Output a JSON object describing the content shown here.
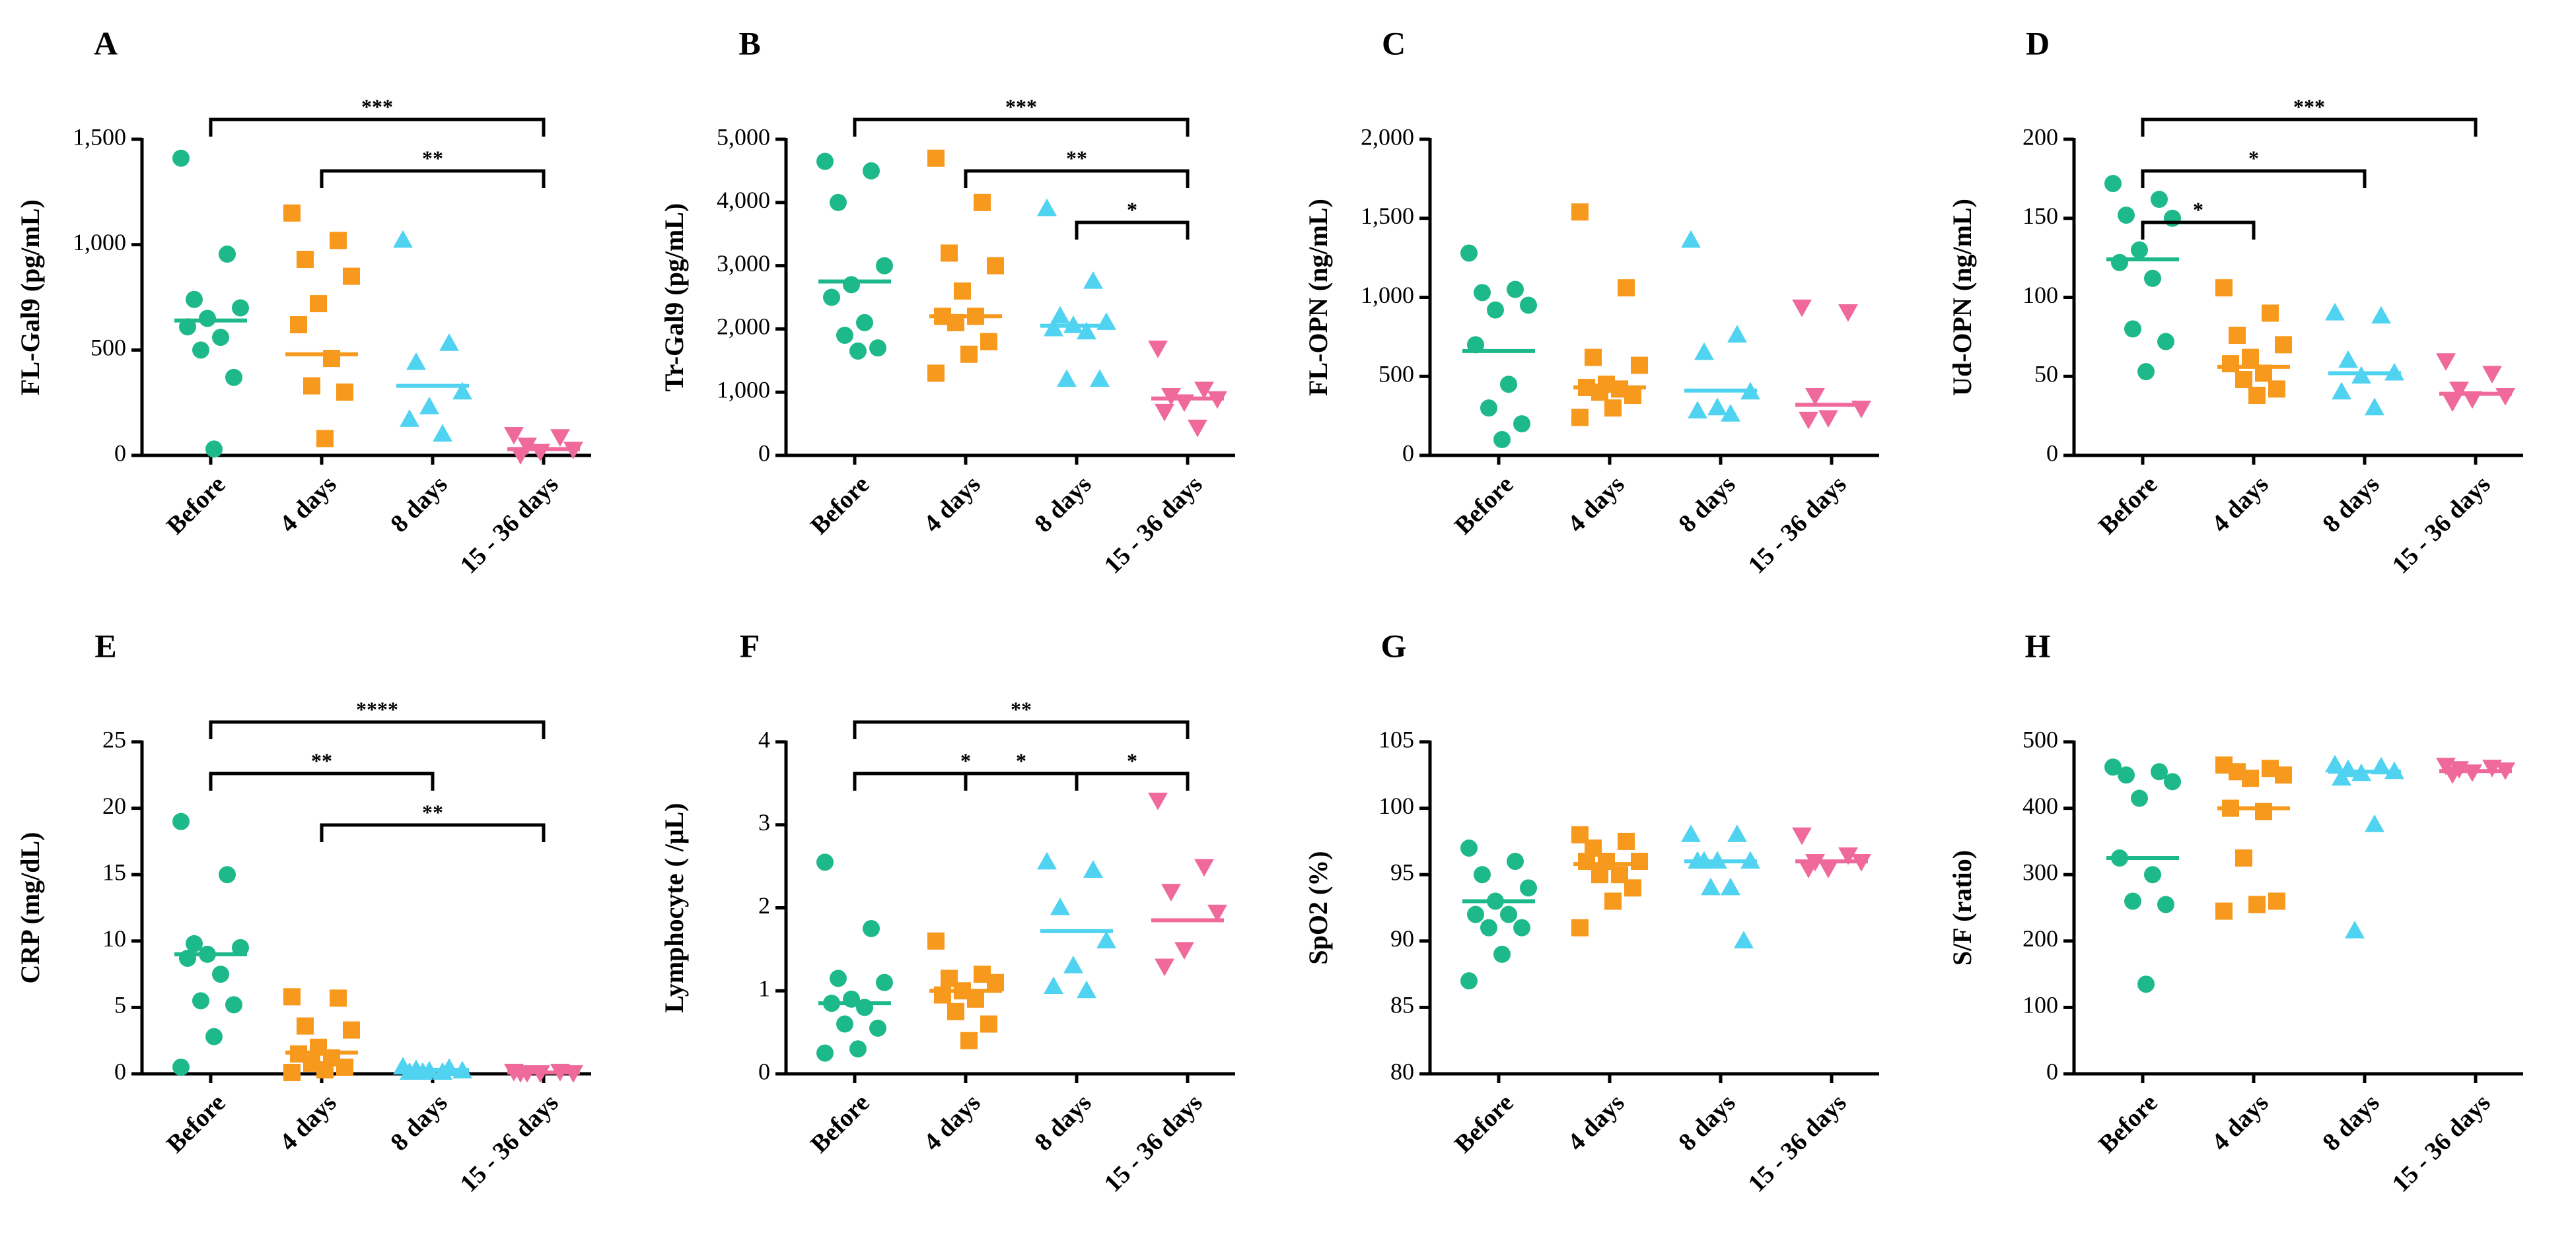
{
  "chart_data": [
    {
      "type": "dotplot",
      "title": "A",
      "y_label": "FL-Gal9 (pg/mL)",
      "categories": [
        "Before",
        "4 days",
        "8 days",
        "15 - 36 days"
      ],
      "colors": [
        "#1db98b",
        "#f7991c",
        "#4fd3f0",
        "#f0699b"
      ],
      "markers": [
        "circle",
        "square",
        "triangle",
        "triangle-down"
      ],
      "ylim": [
        0,
        1500
      ],
      "yticks": [
        0,
        500,
        {
          "value": 1000,
          "label": "1,000"
        },
        {
          "value": 1500,
          "label": "1,500"
        }
      ],
      "points": [
        [
          1410,
          955,
          740,
          700,
          650,
          610,
          560,
          500,
          370,
          30
        ],
        [
          1150,
          1020,
          930,
          850,
          720,
          620,
          460,
          330,
          300,
          80
        ],
        [
          1020,
          530,
          440,
          300,
          230,
          170,
          100
        ],
        [
          100,
          90,
          50,
          30,
          20,
          5
        ]
      ],
      "medians": [
        640,
        480,
        330,
        30
      ],
      "comparisons": [
        {
          "groups": [
            "Before",
            "15 - 36 days"
          ],
          "label": "***"
        },
        {
          "groups": [
            "4 days",
            "15 - 36 days"
          ],
          "label": "**"
        }
      ]
    },
    {
      "type": "dotplot",
      "title": "B",
      "y_label": "Tr-Gal9 (pg/mL)",
      "categories": [
        "Before",
        "4 days",
        "8 days",
        "15 - 36 days"
      ],
      "colors": [
        "#1db98b",
        "#f7991c",
        "#4fd3f0",
        "#f0699b"
      ],
      "markers": [
        "circle",
        "square",
        "triangle",
        "triangle-down"
      ],
      "ylim": [
        0,
        5000
      ],
      "yticks": [
        0,
        {
          "value": 1000,
          "label": "1,000"
        },
        {
          "value": 2000,
          "label": "2,000"
        },
        {
          "value": 3000,
          "label": "3,000"
        },
        {
          "value": 4000,
          "label": "4,000"
        },
        {
          "value": 5000,
          "label": "5,000"
        }
      ],
      "points": [
        [
          4650,
          4500,
          4000,
          3000,
          2700,
          2500,
          2100,
          1900,
          1700,
          1650
        ],
        [
          4700,
          4000,
          3200,
          3000,
          2600,
          2200,
          2200,
          2100,
          1800,
          1600,
          1300
        ],
        [
          3900,
          2750,
          2200,
          2100,
          2050,
          2000,
          1950,
          1200,
          1200
        ],
        [
          1700,
          1050,
          950,
          900,
          850,
          700,
          450
        ]
      ],
      "medians": [
        2750,
        2200,
        2050,
        900
      ],
      "comparisons": [
        {
          "groups": [
            "Before",
            "15 - 36 days"
          ],
          "label": "***"
        },
        {
          "groups": [
            "4 days",
            "15 - 36 days"
          ],
          "label": "**"
        },
        {
          "groups": [
            "8 days",
            "15 - 36 days"
          ],
          "label": "*"
        }
      ]
    },
    {
      "type": "dotplot",
      "title": "C",
      "y_label": "FL-OPN (ng/mL)",
      "categories": [
        "Before",
        "4 days",
        "8 days",
        "15 - 36 days"
      ],
      "colors": [
        "#1db98b",
        "#f7991c",
        "#4fd3f0",
        "#f0699b"
      ],
      "markers": [
        "circle",
        "square",
        "triangle",
        "triangle-down"
      ],
      "ylim": [
        0,
        2000
      ],
      "yticks": [
        0,
        500,
        {
          "value": 1000,
          "label": "1,000"
        },
        {
          "value": 1500,
          "label": "1,500"
        },
        {
          "value": 2000,
          "label": "2,000"
        }
      ],
      "points": [
        [
          1280,
          1050,
          1030,
          950,
          920,
          700,
          450,
          300,
          200,
          100
        ],
        [
          1540,
          1060,
          620,
          570,
          450,
          430,
          420,
          400,
          380,
          300,
          240
        ],
        [
          1360,
          760,
          650,
          400,
          300,
          280,
          260
        ],
        [
          940,
          910,
          380,
          300,
          240,
          230
        ]
      ],
      "medians": [
        660,
        430,
        410,
        320
      ],
      "comparisons": []
    },
    {
      "type": "dotplot",
      "title": "D",
      "y_label": "Ud-OPN (ng/mL)",
      "categories": [
        "Before",
        "4 days",
        "8 days",
        "15 - 36 days"
      ],
      "colors": [
        "#1db98b",
        "#f7991c",
        "#4fd3f0",
        "#f0699b"
      ],
      "markers": [
        "circle",
        "square",
        "triangle",
        "triangle-down"
      ],
      "ylim": [
        0,
        200
      ],
      "yticks": [
        0,
        50,
        100,
        150,
        200
      ],
      "points": [
        [
          172,
          162,
          152,
          150,
          130,
          122,
          112,
          80,
          72,
          53
        ],
        [
          106,
          90,
          76,
          70,
          62,
          58,
          52,
          48,
          42,
          38
        ],
        [
          90,
          88,
          60,
          52,
          50,
          40,
          30
        ],
        [
          60,
          52,
          42,
          38,
          36,
          34
        ]
      ],
      "medians": [
        124,
        56,
        52,
        39
      ],
      "comparisons": [
        {
          "groups": [
            "Before",
            "15 - 36 days"
          ],
          "label": "***"
        },
        {
          "groups": [
            "Before",
            "8 days"
          ],
          "label": "*"
        },
        {
          "groups": [
            "Before",
            "4 days"
          ],
          "label": "*"
        }
      ]
    },
    {
      "type": "dotplot",
      "title": "E",
      "y_label": "CRP (mg/dL)",
      "categories": [
        "Before",
        "4 days",
        "8 days",
        "15 - 36 days"
      ],
      "colors": [
        "#1db98b",
        "#f7991c",
        "#4fd3f0",
        "#f0699b"
      ],
      "markers": [
        "circle",
        "square",
        "triangle",
        "triangle-down"
      ],
      "ylim": [
        0,
        25
      ],
      "yticks": [
        0,
        5,
        10,
        15,
        20,
        25
      ],
      "points": [
        [
          19,
          15,
          9.8,
          9.5,
          9,
          8.7,
          7.5,
          5.5,
          5.2,
          2.8,
          0.5
        ],
        [
          5.8,
          5.7,
          3.6,
          3.3,
          2,
          1.5,
          1.2,
          0.8,
          0.5,
          0.3,
          0.1
        ],
        [
          0.5,
          0.4,
          0.3,
          0.2,
          0.2,
          0.1,
          0.1,
          0.1
        ],
        [
          0.2,
          0.2,
          0.1,
          0.1,
          0.1,
          0.1
        ]
      ],
      "medians": [
        9,
        1.6,
        0.3,
        0.1
      ],
      "comparisons": [
        {
          "groups": [
            "Before",
            "15 - 36 days"
          ],
          "label": "****"
        },
        {
          "groups": [
            "Before",
            "8 days"
          ],
          "label": "**"
        },
        {
          "groups": [
            "4 days",
            "15 - 36 days"
          ],
          "label": "**"
        }
      ]
    },
    {
      "type": "dotplot",
      "title": "F",
      "y_label": "Lymphocyte ( /μL)",
      "categories": [
        "Before",
        "4 days",
        "8 days",
        "15 - 36 days"
      ],
      "colors": [
        "#1db98b",
        "#f7991c",
        "#4fd3f0",
        "#f0699b"
      ],
      "markers": [
        "circle",
        "square",
        "triangle",
        "triangle-down"
      ],
      "ylim": [
        0,
        4
      ],
      "yticks": [
        0,
        1,
        2,
        3,
        4
      ],
      "points": [
        [
          2.55,
          1.75,
          1.15,
          1.1,
          0.9,
          0.85,
          0.8,
          0.6,
          0.55,
          0.3,
          0.25
        ],
        [
          1.6,
          1.2,
          1.15,
          1.1,
          1.0,
          0.95,
          0.9,
          0.75,
          0.6,
          0.4
        ],
        [
          2.55,
          2.45,
          2.0,
          1.6,
          1.3,
          1.05,
          1.0
        ],
        [
          3.3,
          2.5,
          2.2,
          1.95,
          1.5,
          1.3
        ]
      ],
      "medians": [
        0.85,
        1.0,
        1.72,
        1.85
      ],
      "comparisons": [
        {
          "groups": [
            "Before",
            "15 - 36 days"
          ],
          "label": "**"
        },
        {
          "groups": [
            "Before",
            "8 days"
          ],
          "label": "*"
        },
        {
          "groups": [
            "8 days",
            "15 - 36 days"
          ],
          "label": "*"
        },
        {
          "groups": [
            "4 days",
            "8 days"
          ],
          "label": "*"
        }
      ]
    },
    {
      "type": "dotplot",
      "title": "G",
      "y_label": "SpO2 (%)",
      "categories": [
        "Before",
        "4 days",
        "8 days",
        "15 - 36 days"
      ],
      "colors": [
        "#1db98b",
        "#f7991c",
        "#4fd3f0",
        "#f0699b"
      ],
      "markers": [
        "circle",
        "square",
        "triangle",
        "triangle-down"
      ],
      "ylim": [
        80,
        105
      ],
      "yticks": [
        80,
        85,
        90,
        95,
        100,
        105
      ],
      "points": [
        [
          97,
          96,
          95,
          94,
          93,
          92,
          92,
          91,
          91,
          89,
          87
        ],
        [
          98,
          97.5,
          97,
          96,
          96,
          96,
          95,
          95,
          94,
          93,
          91
        ],
        [
          98,
          98,
          96,
          96,
          96,
          96,
          94,
          94,
          90
        ],
        [
          98,
          96.5,
          96,
          96,
          95.5,
          95.5
        ]
      ],
      "medians": [
        93,
        95.8,
        96,
        96
      ],
      "comparisons": []
    },
    {
      "type": "dotplot",
      "title": "H",
      "y_label": "S/F (ratio)",
      "categories": [
        "Before",
        "4 days",
        "8 days",
        "15 - 36 days"
      ],
      "colors": [
        "#1db98b",
        "#f7991c",
        "#4fd3f0",
        "#f0699b"
      ],
      "markers": [
        "circle",
        "square",
        "triangle",
        "triangle-down"
      ],
      "ylim": [
        0,
        500
      ],
      "yticks": [
        0,
        100,
        200,
        300,
        400,
        500
      ],
      "points": [
        [
          462,
          455,
          450,
          440,
          415,
          325,
          300,
          260,
          255,
          135
        ],
        [
          465,
          460,
          455,
          450,
          445,
          400,
          395,
          325,
          260,
          255,
          245
        ],
        [
          465,
          462,
          458,
          455,
          452,
          445,
          375,
          215
        ],
        [
          465,
          462,
          460,
          458,
          455,
          452
        ]
      ],
      "medians": [
        325,
        400,
        455,
        456
      ],
      "comparisons": []
    }
  ]
}
